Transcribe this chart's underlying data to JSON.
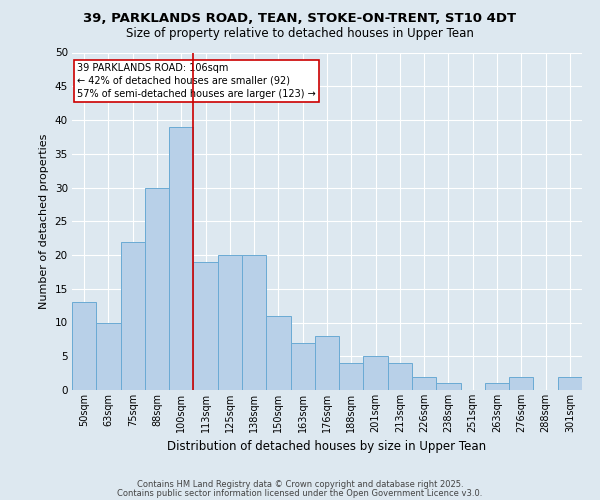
{
  "title1": "39, PARKLANDS ROAD, TEAN, STOKE-ON-TRENT, ST10 4DT",
  "title2": "Size of property relative to detached houses in Upper Tean",
  "xlabel": "Distribution of detached houses by size in Upper Tean",
  "ylabel": "Number of detached properties",
  "bar_color": "#b8d0e8",
  "bar_edge_color": "#6aaad4",
  "background_color": "#dde8f0",
  "fig_background_color": "#dde8f0",
  "grid_color": "#ffffff",
  "categories": [
    "50sqm",
    "63sqm",
    "75sqm",
    "88sqm",
    "100sqm",
    "113sqm",
    "125sqm",
    "138sqm",
    "150sqm",
    "163sqm",
    "176sqm",
    "188sqm",
    "201sqm",
    "213sqm",
    "226sqm",
    "238sqm",
    "251sqm",
    "263sqm",
    "276sqm",
    "288sqm",
    "301sqm"
  ],
  "values": [
    13,
    10,
    22,
    30,
    39,
    19,
    20,
    20,
    11,
    7,
    8,
    4,
    5,
    4,
    2,
    1,
    0,
    1,
    2,
    0,
    2
  ],
  "ylim": [
    0,
    50
  ],
  "yticks": [
    0,
    5,
    10,
    15,
    20,
    25,
    30,
    35,
    40,
    45,
    50
  ],
  "vline_x": 4.5,
  "vline_color": "#cc0000",
  "annotation_text": "39 PARKLANDS ROAD: 106sqm\n← 42% of detached houses are smaller (92)\n57% of semi-detached houses are larger (123) →",
  "annotation_box_color": "#ffffff",
  "annotation_border_color": "#cc0000",
  "footer1": "Contains HM Land Registry data © Crown copyright and database right 2025.",
  "footer2": "Contains public sector information licensed under the Open Government Licence v3.0."
}
